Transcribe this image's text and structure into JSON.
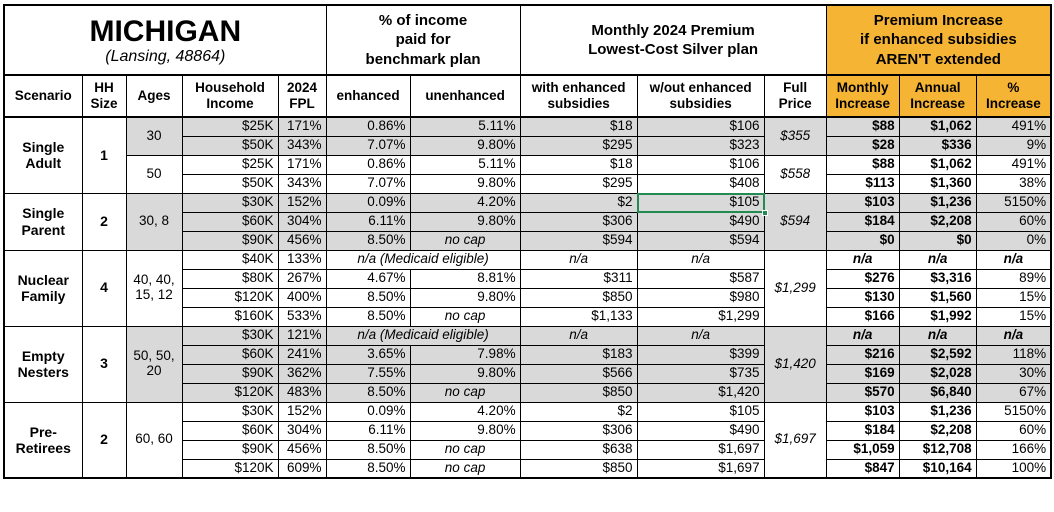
{
  "table": {
    "region": "MICHIGAN",
    "region_sub": "(Lansing, 48864)",
    "header_groups": {
      "pct_income": "% of income\npaid for\nbenchmark plan",
      "premium": "Monthly 2024 Premium\nLowest-Cost Silver plan",
      "increase": "Premium Increase\nif enhanced subsidies\nAREN'T extended"
    },
    "columns": [
      "Scenario",
      "HH\nSize",
      "Ages",
      "Household\nIncome",
      "2024\nFPL",
      "enhanced",
      "unenhanced",
      "with enhanced\nsubsidies",
      "w/out enhanced\nsubsidies",
      "Full\nPrice",
      "Monthly\nIncrease",
      "Annual\nIncrease",
      "%\nIncrease"
    ],
    "colors": {
      "accent_orange": "#F6B434",
      "row_shade": "#D9D9D9",
      "selection_green": "#238A52"
    },
    "groups": [
      {
        "scenario": "Single\nAdult",
        "hh_size": "1",
        "blocks": [
          {
            "ages": "30",
            "shaded": true,
            "full_price": "$355",
            "rows": [
              {
                "income": "$25K",
                "fpl": "171%",
                "enhanced": "0.86%",
                "unenhanced": "5.11%",
                "with_sub": "$18",
                "wout_sub": "$106",
                "monthly": "$88",
                "annual": "$1,062",
                "pct": "491%"
              },
              {
                "income": "$50K",
                "fpl": "343%",
                "enhanced": "7.07%",
                "unenhanced": "9.80%",
                "with_sub": "$295",
                "wout_sub": "$323",
                "monthly": "$28",
                "annual": "$336",
                "pct": "9%"
              }
            ]
          },
          {
            "ages": "50",
            "shaded": false,
            "full_price": "$558",
            "rows": [
              {
                "income": "$25K",
                "fpl": "171%",
                "enhanced": "0.86%",
                "unenhanced": "5.11%",
                "with_sub": "$18",
                "wout_sub": "$106",
                "monthly": "$88",
                "annual": "$1,062",
                "pct": "491%"
              },
              {
                "income": "$50K",
                "fpl": "343%",
                "enhanced": "7.07%",
                "unenhanced": "9.80%",
                "with_sub": "$295",
                "wout_sub": "$408",
                "monthly": "$113",
                "annual": "$1,360",
                "pct": "38%"
              }
            ]
          }
        ]
      },
      {
        "scenario": "Single\nParent",
        "hh_size": "2",
        "blocks": [
          {
            "ages": "30, 8",
            "shaded": true,
            "full_price": "$594",
            "rows": [
              {
                "income": "$30K",
                "fpl": "152%",
                "enhanced": "0.09%",
                "unenhanced": "4.20%",
                "with_sub": "$2",
                "wout_sub": "$105",
                "selected": true,
                "monthly": "$103",
                "annual": "$1,236",
                "pct": "5150%"
              },
              {
                "income": "$60K",
                "fpl": "304%",
                "enhanced": "6.11%",
                "unenhanced": "9.80%",
                "with_sub": "$306",
                "wout_sub": "$490",
                "monthly": "$184",
                "annual": "$2,208",
                "pct": "60%"
              },
              {
                "income": "$90K",
                "fpl": "456%",
                "enhanced": "8.50%",
                "unenhanced": "no cap",
                "no_cap": true,
                "with_sub": "$594",
                "wout_sub": "$594",
                "monthly": "$0",
                "annual": "$0",
                "pct": "0%"
              }
            ]
          }
        ]
      },
      {
        "scenario": "Nuclear\nFamily",
        "hh_size": "4",
        "blocks": [
          {
            "ages": "40, 40,\n15, 12",
            "shaded": false,
            "full_price": "$1,299",
            "rows": [
              {
                "income": "$40K",
                "fpl": "133%",
                "na": true,
                "medicaid": "n/a (Medicaid eligible)",
                "with_sub": "n/a",
                "wout_sub": "n/a",
                "monthly": "n/a",
                "annual": "n/a",
                "pct": "n/a"
              },
              {
                "income": "$80K",
                "fpl": "267%",
                "enhanced": "4.67%",
                "unenhanced": "8.81%",
                "with_sub": "$311",
                "wout_sub": "$587",
                "monthly": "$276",
                "annual": "$3,316",
                "pct": "89%"
              },
              {
                "income": "$120K",
                "fpl": "400%",
                "enhanced": "8.50%",
                "unenhanced": "9.80%",
                "with_sub": "$850",
                "wout_sub": "$980",
                "monthly": "$130",
                "annual": "$1,560",
                "pct": "15%"
              },
              {
                "income": "$160K",
                "fpl": "533%",
                "enhanced": "8.50%",
                "unenhanced": "no cap",
                "no_cap": true,
                "with_sub": "$1,133",
                "wout_sub": "$1,299",
                "monthly": "$166",
                "annual": "$1,992",
                "pct": "15%"
              }
            ]
          }
        ]
      },
      {
        "scenario": "Empty\nNesters",
        "hh_size": "3",
        "blocks": [
          {
            "ages": "50, 50,\n20",
            "shaded": true,
            "full_price": "$1,420",
            "rows": [
              {
                "income": "$30K",
                "fpl": "121%",
                "na": true,
                "medicaid": "n/a (Medicaid eligible)",
                "with_sub": "n/a",
                "wout_sub": "n/a",
                "monthly": "n/a",
                "annual": "n/a",
                "pct": "n/a"
              },
              {
                "income": "$60K",
                "fpl": "241%",
                "enhanced": "3.65%",
                "unenhanced": "7.98%",
                "with_sub": "$183",
                "wout_sub": "$399",
                "monthly": "$216",
                "annual": "$2,592",
                "pct": "118%"
              },
              {
                "income": "$90K",
                "fpl": "362%",
                "enhanced": "7.55%",
                "unenhanced": "9.80%",
                "with_sub": "$566",
                "wout_sub": "$735",
                "monthly": "$169",
                "annual": "$2,028",
                "pct": "30%"
              },
              {
                "income": "$120K",
                "fpl": "483%",
                "enhanced": "8.50%",
                "unenhanced": "no cap",
                "no_cap": true,
                "with_sub": "$850",
                "wout_sub": "$1,420",
                "monthly": "$570",
                "annual": "$6,840",
                "pct": "67%"
              }
            ]
          }
        ]
      },
      {
        "scenario": "Pre-\nRetirees",
        "hh_size": "2",
        "blocks": [
          {
            "ages": "60, 60",
            "shaded": false,
            "full_price": "$1,697",
            "rows": [
              {
                "income": "$30K",
                "fpl": "152%",
                "enhanced": "0.09%",
                "unenhanced": "4.20%",
                "with_sub": "$2",
                "wout_sub": "$105",
                "monthly": "$103",
                "annual": "$1,236",
                "pct": "5150%"
              },
              {
                "income": "$60K",
                "fpl": "304%",
                "enhanced": "6.11%",
                "unenhanced": "9.80%",
                "with_sub": "$306",
                "wout_sub": "$490",
                "monthly": "$184",
                "annual": "$2,208",
                "pct": "60%"
              },
              {
                "income": "$90K",
                "fpl": "456%",
                "enhanced": "8.50%",
                "unenhanced": "no cap",
                "no_cap": true,
                "with_sub": "$638",
                "wout_sub": "$1,697",
                "monthly": "$1,059",
                "annual": "$12,708",
                "pct": "166%"
              },
              {
                "income": "$120K",
                "fpl": "609%",
                "enhanced": "8.50%",
                "unenhanced": "no cap",
                "no_cap": true,
                "with_sub": "$850",
                "wout_sub": "$1,697",
                "monthly": "$847",
                "annual": "$10,164",
                "pct": "100%"
              }
            ]
          }
        ]
      }
    ]
  }
}
